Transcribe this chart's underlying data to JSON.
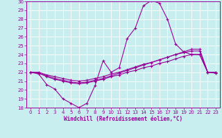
{
  "xlabel": "Windchill (Refroidissement éolien,°C)",
  "xlim": [
    -0.5,
    23.5
  ],
  "ylim": [
    18,
    30
  ],
  "yticks": [
    18,
    19,
    20,
    21,
    22,
    23,
    24,
    25,
    26,
    27,
    28,
    29,
    30
  ],
  "xticks": [
    0,
    1,
    2,
    3,
    4,
    5,
    6,
    7,
    8,
    9,
    10,
    11,
    12,
    13,
    14,
    15,
    16,
    17,
    18,
    19,
    20,
    21,
    22,
    23
  ],
  "background_color": "#c8eef0",
  "grid_color": "#ffffff",
  "line_color": "#990099",
  "line1_x": [
    0,
    1,
    2,
    3,
    4,
    5,
    6,
    7,
    8,
    9,
    10,
    11,
    12,
    13,
    14,
    15,
    16,
    17,
    18,
    19,
    20,
    21,
    22,
    23
  ],
  "line1_y": [
    22.0,
    21.8,
    20.6,
    20.1,
    19.0,
    18.5,
    18.0,
    18.5,
    20.5,
    23.3,
    22.0,
    22.5,
    25.8,
    27.0,
    29.5,
    30.1,
    29.8,
    28.0,
    25.2,
    24.3,
    24.0,
    24.0,
    22.0,
    22.0
  ],
  "line2_x": [
    0,
    1,
    2,
    3,
    4,
    5,
    6,
    7,
    8,
    9,
    10,
    11,
    12,
    13,
    14,
    15,
    16,
    17,
    18,
    19,
    20,
    21,
    22,
    23
  ],
  "line2_y": [
    22.0,
    21.9,
    21.5,
    21.2,
    21.0,
    20.8,
    20.7,
    20.8,
    21.0,
    21.2,
    21.5,
    21.7,
    22.0,
    22.2,
    22.5,
    22.7,
    23.0,
    23.2,
    23.5,
    23.8,
    24.0,
    24.0,
    22.0,
    21.9
  ],
  "line3_x": [
    0,
    1,
    2,
    3,
    4,
    5,
    6,
    7,
    8,
    9,
    10,
    11,
    12,
    13,
    14,
    15,
    16,
    17,
    18,
    19,
    20,
    21,
    22,
    23
  ],
  "line3_y": [
    22.0,
    22.0,
    21.7,
    21.5,
    21.3,
    21.1,
    21.0,
    21.1,
    21.3,
    21.5,
    21.8,
    22.0,
    22.3,
    22.6,
    22.9,
    23.1,
    23.4,
    23.7,
    24.0,
    24.2,
    24.4,
    24.4,
    22.0,
    22.0
  ],
  "line4_x": [
    0,
    1,
    2,
    3,
    4,
    5,
    6,
    7,
    8,
    9,
    10,
    11,
    12,
    13,
    14,
    15,
    16,
    17,
    18,
    19,
    20,
    21,
    22,
    23
  ],
  "line4_y": [
    22.0,
    21.9,
    21.6,
    21.3,
    21.1,
    20.9,
    20.8,
    20.9,
    21.1,
    21.3,
    21.6,
    21.9,
    22.2,
    22.5,
    22.8,
    23.1,
    23.4,
    23.7,
    24.0,
    24.3,
    24.6,
    24.6,
    22.0,
    21.9
  ],
  "tick_fontsize": 5,
  "xlabel_fontsize": 5.5,
  "marker_size": 3,
  "linewidth": 0.8
}
